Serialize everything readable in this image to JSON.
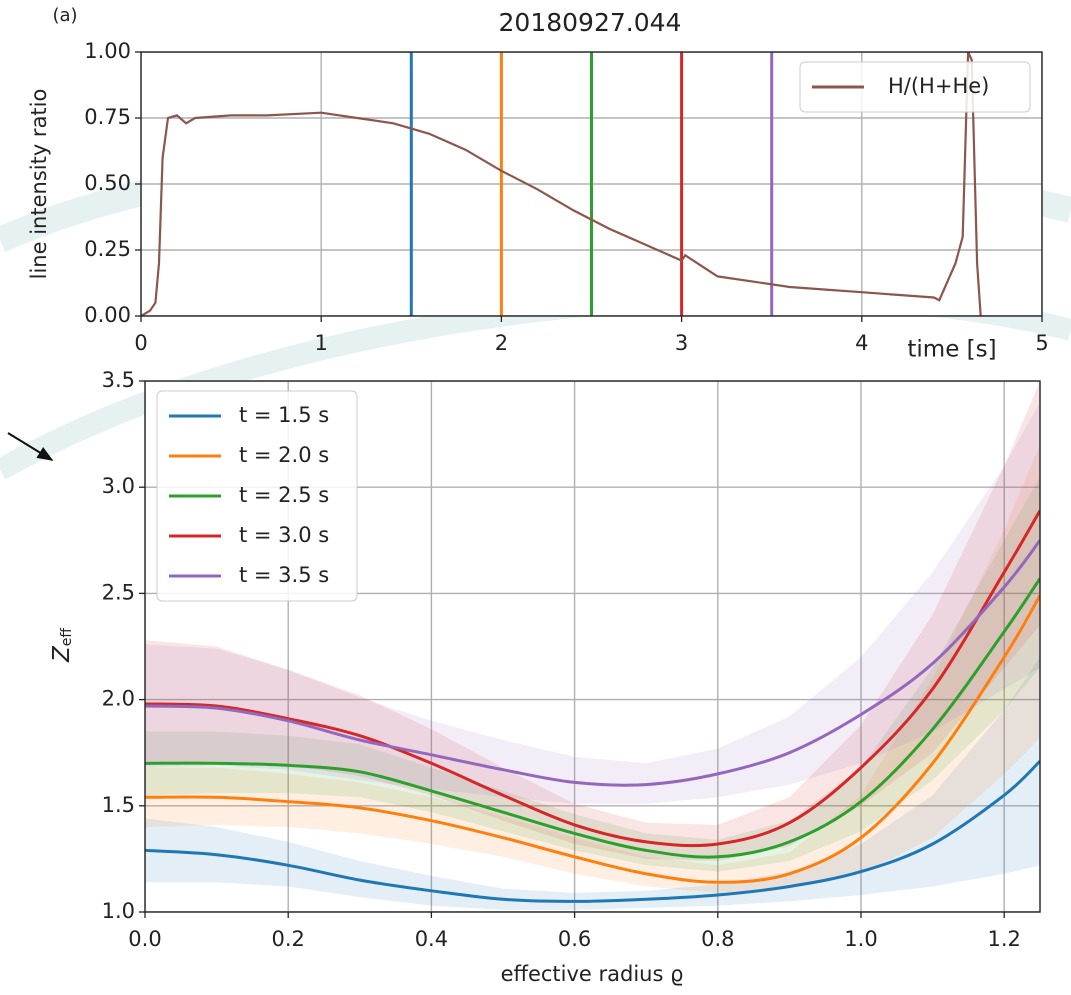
{
  "chart_data": [
    {
      "type": "line",
      "title": "20180927.044",
      "panel_label": "(a)",
      "ylabel": "line intensity ratio",
      "xlabel": "time [s]",
      "xlim": [
        0,
        5
      ],
      "ylim": [
        0,
        1
      ],
      "xticks": [
        0,
        1,
        2,
        3,
        4,
        5
      ],
      "yticks": [
        {
          "value": 0,
          "label": "0.00"
        },
        {
          "value": 0.25,
          "label": "0.25"
        },
        {
          "value": 0.5,
          "label": "0.50"
        },
        {
          "value": 0.75,
          "label": "0.75"
        },
        {
          "value": 1,
          "label": "1.00"
        }
      ],
      "grid": true,
      "legend": "upper right",
      "series": [
        {
          "name": "H/(H+He)",
          "color": "#8c564b",
          "x": [
            0,
            0.05,
            0.08,
            0.1,
            0.12,
            0.15,
            0.2,
            0.25,
            0.3,
            0.5,
            0.7,
            1.0,
            1.2,
            1.4,
            1.6,
            1.8,
            2.0,
            2.2,
            2.4,
            2.6,
            2.8,
            3.0,
            3.02,
            3.2,
            3.4,
            3.6,
            3.8,
            4.0,
            4.2,
            4.4,
            4.43,
            4.52,
            4.56,
            4.59,
            4.61,
            4.64,
            4.66
          ],
          "values": [
            0,
            0.02,
            0.05,
            0.2,
            0.6,
            0.75,
            0.76,
            0.73,
            0.75,
            0.76,
            0.76,
            0.77,
            0.75,
            0.73,
            0.69,
            0.63,
            0.55,
            0.48,
            0.4,
            0.33,
            0.27,
            0.21,
            0.23,
            0.15,
            0.13,
            0.11,
            0.1,
            0.09,
            0.08,
            0.07,
            0.06,
            0.2,
            0.3,
            1.0,
            0.97,
            0.2,
            0
          ]
        }
      ],
      "vlines": [
        {
          "x": 1.5,
          "color": "#1f77b4"
        },
        {
          "x": 2.0,
          "color": "#ff7f0e"
        },
        {
          "x": 2.5,
          "color": "#2ca02c"
        },
        {
          "x": 3.0,
          "color": "#d62728"
        },
        {
          "x": 3.5,
          "color": "#9467bd"
        }
      ]
    },
    {
      "type": "band-line",
      "ylabel": {
        "main": "Z",
        "sub": "eff"
      },
      "xlabel": "effective radius ϱ",
      "xlim": [
        0,
        1.25
      ],
      "ylim": [
        1.0,
        3.5
      ],
      "xticks": [
        {
          "value": 0,
          "label": "0.0"
        },
        {
          "value": 0.2,
          "label": "0.2"
        },
        {
          "value": 0.4,
          "label": "0.4"
        },
        {
          "value": 0.6,
          "label": "0.6"
        },
        {
          "value": 0.8,
          "label": "0.8"
        },
        {
          "value": 1.0,
          "label": "1.0"
        },
        {
          "value": 1.2,
          "label": "1.2"
        }
      ],
      "yticks": [
        {
          "value": 1.0,
          "label": "1.0"
        },
        {
          "value": 1.5,
          "label": "1.5"
        },
        {
          "value": 2.0,
          "label": "2.0"
        },
        {
          "value": 2.5,
          "label": "2.5"
        },
        {
          "value": 3.0,
          "label": "3.0"
        },
        {
          "value": 3.5,
          "label": "3.5"
        }
      ],
      "grid": true,
      "legend": "upper left",
      "x": [
        0,
        0.1,
        0.2,
        0.3,
        0.4,
        0.5,
        0.6,
        0.7,
        0.8,
        0.9,
        1.0,
        1.1,
        1.2,
        1.25
      ],
      "series": [
        {
          "name": "t = 1.5 s",
          "color": "#1f77b4",
          "values": [
            1.29,
            1.27,
            1.22,
            1.15,
            1.1,
            1.06,
            1.05,
            1.06,
            1.08,
            1.12,
            1.19,
            1.32,
            1.55,
            1.71
          ],
          "lower": [
            1.14,
            1.14,
            1.12,
            1.07,
            1.03,
            1.01,
            1.01,
            1.02,
            1.03,
            1.05,
            1.08,
            1.12,
            1.18,
            1.22
          ],
          "upper": [
            1.44,
            1.4,
            1.33,
            1.24,
            1.17,
            1.11,
            1.09,
            1.1,
            1.13,
            1.19,
            1.32,
            1.55,
            1.95,
            2.2
          ]
        },
        {
          "name": "t = 2.0 s",
          "color": "#ff7f0e",
          "values": [
            1.54,
            1.54,
            1.52,
            1.49,
            1.43,
            1.35,
            1.26,
            1.18,
            1.14,
            1.18,
            1.35,
            1.7,
            2.2,
            2.49
          ],
          "lower": [
            1.4,
            1.41,
            1.4,
            1.37,
            1.32,
            1.26,
            1.18,
            1.12,
            1.09,
            1.11,
            1.18,
            1.35,
            1.65,
            1.82
          ],
          "upper": [
            1.68,
            1.68,
            1.65,
            1.61,
            1.54,
            1.45,
            1.35,
            1.26,
            1.22,
            1.28,
            1.55,
            2.1,
            2.8,
            3.2
          ]
        },
        {
          "name": "t = 2.5 s",
          "color": "#2ca02c",
          "values": [
            1.7,
            1.7,
            1.69,
            1.66,
            1.57,
            1.47,
            1.37,
            1.29,
            1.26,
            1.33,
            1.52,
            1.86,
            2.32,
            2.57
          ],
          "lower": [
            1.55,
            1.56,
            1.56,
            1.54,
            1.47,
            1.38,
            1.29,
            1.22,
            1.19,
            1.24,
            1.38,
            1.62,
            1.95,
            2.15
          ],
          "upper": [
            1.85,
            1.85,
            1.83,
            1.79,
            1.68,
            1.57,
            1.46,
            1.37,
            1.34,
            1.43,
            1.68,
            2.15,
            2.75,
            3.05
          ]
        },
        {
          "name": "t = 3.0 s",
          "color": "#d62728",
          "values": [
            1.98,
            1.97,
            1.91,
            1.83,
            1.7,
            1.55,
            1.41,
            1.33,
            1.32,
            1.42,
            1.68,
            2.05,
            2.6,
            2.89
          ],
          "lower": [
            1.7,
            1.71,
            1.69,
            1.64,
            1.55,
            1.43,
            1.32,
            1.25,
            1.24,
            1.31,
            1.5,
            1.75,
            2.15,
            2.35
          ],
          "upper": [
            2.28,
            2.25,
            2.14,
            2.02,
            1.86,
            1.68,
            1.51,
            1.42,
            1.41,
            1.54,
            1.88,
            2.4,
            3.1,
            3.5
          ]
        },
        {
          "name": "t = 3.5 s",
          "color": "#9467bd",
          "values": [
            1.97,
            1.96,
            1.9,
            1.81,
            1.74,
            1.67,
            1.61,
            1.6,
            1.65,
            1.75,
            1.93,
            2.17,
            2.53,
            2.75
          ],
          "lower": [
            1.68,
            1.69,
            1.67,
            1.62,
            1.58,
            1.54,
            1.51,
            1.51,
            1.54,
            1.6,
            1.7,
            1.85,
            2.05,
            2.15
          ],
          "upper": [
            2.26,
            2.24,
            2.14,
            2.01,
            1.9,
            1.81,
            1.73,
            1.7,
            1.77,
            1.92,
            2.2,
            2.6,
            3.1,
            3.4
          ]
        }
      ]
    }
  ]
}
